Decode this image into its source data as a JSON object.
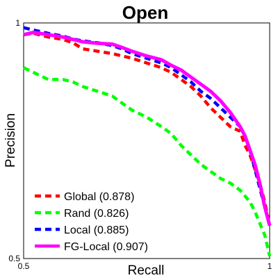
{
  "chart_data": {
    "type": "line",
    "title": "Open",
    "xlabel": "Recall",
    "ylabel": "Precision",
    "xlim": [
      0.5,
      1
    ],
    "ylim": [
      0.5,
      1
    ],
    "x_ticks": [
      "0.5",
      "1"
    ],
    "y_ticks": [
      "0.5",
      "1"
    ],
    "grid": false,
    "legend_position": "bottom-left",
    "series": [
      {
        "name": "Global (0.878)",
        "color": "#ff0000",
        "style": "dashed",
        "x": [
          0.5,
          0.52,
          0.55,
          0.58,
          0.6,
          0.62,
          0.65,
          0.68,
          0.7,
          0.72,
          0.75,
          0.78,
          0.8,
          0.82,
          0.84,
          0.86,
          0.88,
          0.9,
          0.92,
          0.94,
          0.95,
          0.96,
          0.97,
          0.98,
          0.99,
          1.0
        ],
        "y": [
          0.975,
          0.978,
          0.97,
          0.965,
          0.958,
          0.945,
          0.94,
          0.935,
          0.93,
          0.925,
          0.915,
          0.905,
          0.895,
          0.88,
          0.865,
          0.845,
          0.82,
          0.8,
          0.78,
          0.77,
          0.74,
          0.72,
          0.69,
          0.66,
          0.62,
          0.57
        ]
      },
      {
        "name": "Rand (0.826)",
        "color": "#00ff00",
        "style": "dashed",
        "x": [
          0.5,
          0.52,
          0.55,
          0.58,
          0.6,
          0.62,
          0.65,
          0.68,
          0.7,
          0.72,
          0.75,
          0.78,
          0.8,
          0.82,
          0.84,
          0.86,
          0.88,
          0.9,
          0.92,
          0.94,
          0.96,
          0.97,
          0.98,
          0.99,
          1.0
        ],
        "y": [
          0.905,
          0.895,
          0.88,
          0.88,
          0.875,
          0.865,
          0.855,
          0.845,
          0.83,
          0.815,
          0.8,
          0.78,
          0.765,
          0.74,
          0.72,
          0.7,
          0.685,
          0.67,
          0.66,
          0.645,
          0.62,
          0.6,
          0.575,
          0.55,
          0.505
        ]
      },
      {
        "name": "Local (0.885)",
        "color": "#0000ff",
        "style": "dashed",
        "x": [
          0.5,
          0.52,
          0.55,
          0.58,
          0.6,
          0.62,
          0.65,
          0.68,
          0.7,
          0.72,
          0.75,
          0.78,
          0.8,
          0.82,
          0.84,
          0.86,
          0.88,
          0.9,
          0.92,
          0.94,
          0.95,
          0.96,
          0.97,
          0.98,
          0.99,
          1.0
        ],
        "y": [
          0.99,
          0.985,
          0.978,
          0.972,
          0.966,
          0.962,
          0.958,
          0.952,
          0.945,
          0.935,
          0.925,
          0.915,
          0.905,
          0.89,
          0.875,
          0.855,
          0.84,
          0.82,
          0.8,
          0.78,
          0.76,
          0.73,
          0.69,
          0.65,
          0.61,
          0.57
        ]
      },
      {
        "name": "FG-Local (0.907)",
        "color": "#ff00ff",
        "style": "solid",
        "x": [
          0.5,
          0.52,
          0.55,
          0.58,
          0.6,
          0.62,
          0.65,
          0.68,
          0.7,
          0.72,
          0.75,
          0.78,
          0.8,
          0.82,
          0.84,
          0.86,
          0.88,
          0.9,
          0.92,
          0.94,
          0.95,
          0.96,
          0.97,
          0.98,
          0.99,
          1.0
        ],
        "y": [
          0.975,
          0.98,
          0.975,
          0.97,
          0.965,
          0.96,
          0.957,
          0.955,
          0.948,
          0.94,
          0.93,
          0.922,
          0.91,
          0.9,
          0.885,
          0.87,
          0.855,
          0.835,
          0.81,
          0.78,
          0.76,
          0.73,
          0.7,
          0.66,
          0.61,
          0.57
        ]
      }
    ]
  }
}
